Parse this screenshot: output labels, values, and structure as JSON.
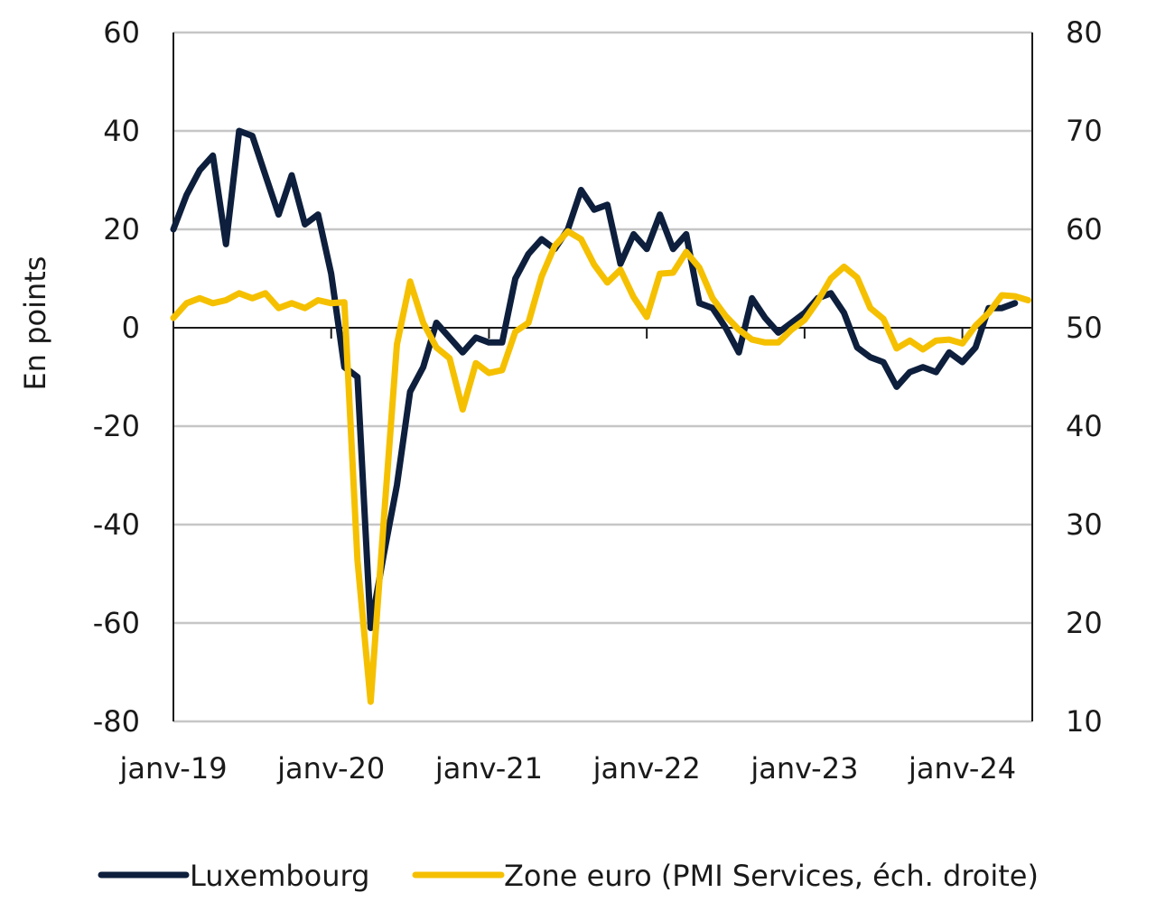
{
  "chart_data": {
    "type": "line",
    "ylabel": "En points",
    "x_start": "2019-01",
    "x_tick_labels": [
      "janv-19",
      "janv-20",
      "janv-21",
      "janv-22",
      "janv-23",
      "janv-24"
    ],
    "y_left": {
      "ylim": [
        -80,
        60
      ],
      "ticks": [
        "60",
        "40",
        "20",
        "0",
        "-20",
        "-40",
        "-60",
        "-80"
      ]
    },
    "y_right": {
      "ylim": [
        10,
        80
      ],
      "ticks": [
        "80",
        "70",
        "60",
        "50",
        "40",
        "30",
        "20",
        "10"
      ]
    },
    "grid": true,
    "legend_position": "bottom",
    "series": [
      {
        "name": "Luxembourg",
        "axis": "left",
        "color": "#0d1f3c",
        "values": [
          20,
          27,
          32,
          35,
          17,
          40,
          39,
          31,
          23,
          31,
          21,
          23,
          11,
          -8,
          -10,
          -61,
          -46,
          -32,
          -13,
          -8,
          1,
          -2,
          -5,
          -2,
          -3,
          -3,
          10,
          15,
          18,
          16,
          20,
          28,
          24,
          25,
          13,
          19,
          16,
          23,
          16,
          19,
          5,
          4,
          0,
          -5,
          6,
          2,
          -1,
          1,
          3,
          6,
          7,
          3,
          -4,
          -6,
          -7,
          -12,
          -9,
          -8,
          -9,
          -5,
          -7,
          -4,
          4,
          4,
          5
        ]
      },
      {
        "name": "Zone euro (PMI Services, éch. droite)",
        "axis": "right",
        "color": "#f5c000",
        "values": [
          51,
          52.5,
          53,
          52.5,
          52.8,
          53.5,
          53,
          53.5,
          52,
          52.5,
          52,
          52.8,
          52.5,
          52.6,
          26.4,
          12,
          30.5,
          48.3,
          54.7,
          50.5,
          48,
          46.9,
          41.7,
          46.4,
          45.4,
          45.7,
          49.6,
          50.5,
          55.2,
          58.3,
          59.8,
          59,
          56.4,
          54.6,
          55.9,
          53.1,
          51.1,
          55.5,
          55.6,
          57.7,
          56.1,
          53,
          51.2,
          49.8,
          48.8,
          48.5,
          48.5,
          49.8,
          50.8,
          52.7,
          55,
          56.2,
          55.1,
          52,
          50.9,
          47.9,
          48.7,
          47.8,
          48.7,
          48.8,
          48.4,
          50.2,
          51.5,
          53.3,
          53.2,
          52.8
        ]
      }
    ]
  }
}
